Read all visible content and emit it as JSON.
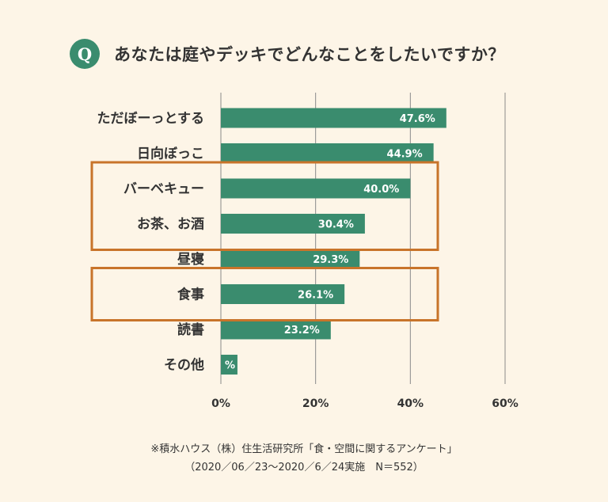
{
  "question": {
    "badge": "Q",
    "text": "あなたは庭やデッキでどんなことをしたいですか？"
  },
  "chart_data": {
    "type": "bar",
    "orientation": "horizontal",
    "categories": [
      "ただぼーっとする",
      "日向ぼっこ",
      "バーベキュー",
      "お茶、お酒",
      "昼寝",
      "食事",
      "読書",
      "その他"
    ],
    "values": [
      47.6,
      44.9,
      40.0,
      30.4,
      29.3,
      26.1,
      23.2,
      3.5
    ],
    "value_labels": [
      "47.6%",
      "44.9%",
      "40.0%",
      "30.4%",
      "29.3%",
      "26.1%",
      "23.2%",
      "%"
    ],
    "xlim": [
      0,
      60
    ],
    "ticks": [
      0,
      20,
      40,
      60
    ],
    "tick_labels": [
      "0%",
      "20%",
      "40%",
      "60%"
    ],
    "grid": true,
    "bar_color": "#3a8c6e",
    "highlight_color": "#c8742a",
    "highlight_groups": [
      [
        2,
        3
      ],
      [
        5
      ]
    ]
  },
  "footer": {
    "source": "※積水ハウス（株）住生活研究所「食・空間に関するアンケート」",
    "note": "（2020／06／23～2020／6／24実施　N＝552）"
  }
}
